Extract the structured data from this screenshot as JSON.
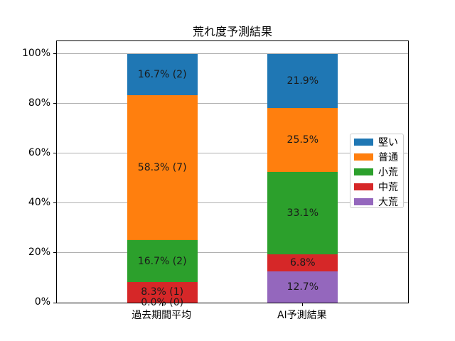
{
  "title": "荒れ度予測結果",
  "chart_data": {
    "type": "bar",
    "stacked": true,
    "title": "荒れ度予測結果",
    "categories": [
      "過去期間平均",
      "AI予測結果"
    ],
    "series": [
      {
        "name": "大荒",
        "color": "#9467bd",
        "values": [
          0.0,
          12.7
        ],
        "labels": [
          "0.0% (0)",
          "12.7%"
        ]
      },
      {
        "name": "中荒",
        "color": "#d62728",
        "values": [
          8.3,
          6.8
        ],
        "labels": [
          "8.3% (1)",
          "6.8%"
        ]
      },
      {
        "name": "小荒",
        "color": "#2ca02c",
        "values": [
          16.7,
          33.1
        ],
        "labels": [
          "16.7% (2)",
          "33.1%"
        ]
      },
      {
        "name": "普通",
        "color": "#ff7f0e",
        "values": [
          58.3,
          25.5
        ],
        "labels": [
          "58.3% (7)",
          "25.5%"
        ]
      },
      {
        "name": "堅い",
        "color": "#1f77b4",
        "values": [
          16.7,
          21.9
        ],
        "labels": [
          "16.7% (2)",
          "21.9%"
        ]
      }
    ],
    "ylim": [
      0,
      105
    ],
    "yticks": [
      0,
      20,
      40,
      60,
      80,
      100
    ],
    "ytick_labels": [
      "0%",
      "20%",
      "40%",
      "60%",
      "80%",
      "100%"
    ],
    "grid": true,
    "legend": {
      "entries": [
        "堅い",
        "普通",
        "小荒",
        "中荒",
        "大荒"
      ],
      "position": "center right"
    }
  },
  "colors": {
    "grid": "#b0b0b0",
    "spine": "#000000",
    "background": "#ffffff"
  }
}
